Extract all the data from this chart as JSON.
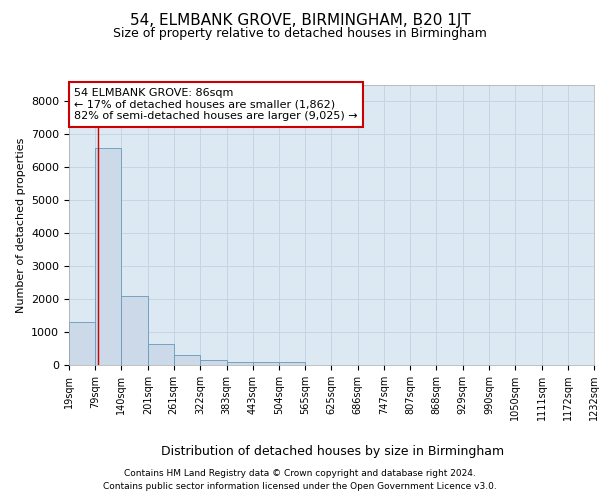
{
  "title": "54, ELMBANK GROVE, BIRMINGHAM, B20 1JT",
  "subtitle": "Size of property relative to detached houses in Birmingham",
  "xlabel": "Distribution of detached houses by size in Birmingham",
  "ylabel": "Number of detached properties",
  "annotation_line1": "54 ELMBANK GROVE: 86sqm",
  "annotation_line2": "← 17% of detached houses are smaller (1,862)",
  "annotation_line3": "82% of semi-detached houses are larger (9,025) →",
  "property_size": 86,
  "bar_color": "#ccd9e8",
  "bar_edge_color": "#6699bb",
  "red_line_color": "#cc0000",
  "annotation_box_color": "#ffffff",
  "annotation_box_edge": "#cc0000",
  "grid_color": "#c5d5e5",
  "background_color": "#dce8f2",
  "footer_line1": "Contains HM Land Registry data © Crown copyright and database right 2024.",
  "footer_line2": "Contains public sector information licensed under the Open Government Licence v3.0.",
  "bin_edges": [
    19,
    79,
    140,
    201,
    261,
    322,
    383,
    443,
    504,
    565,
    625,
    686,
    747,
    807,
    868,
    929,
    990,
    1050,
    1111,
    1172,
    1232
  ],
  "bar_heights": [
    1300,
    6600,
    2100,
    650,
    300,
    150,
    100,
    80,
    80,
    0,
    0,
    0,
    0,
    0,
    0,
    0,
    0,
    0,
    0,
    0
  ],
  "ylim": [
    0,
    8500
  ],
  "yticks": [
    0,
    1000,
    2000,
    3000,
    4000,
    5000,
    6000,
    7000,
    8000
  ]
}
